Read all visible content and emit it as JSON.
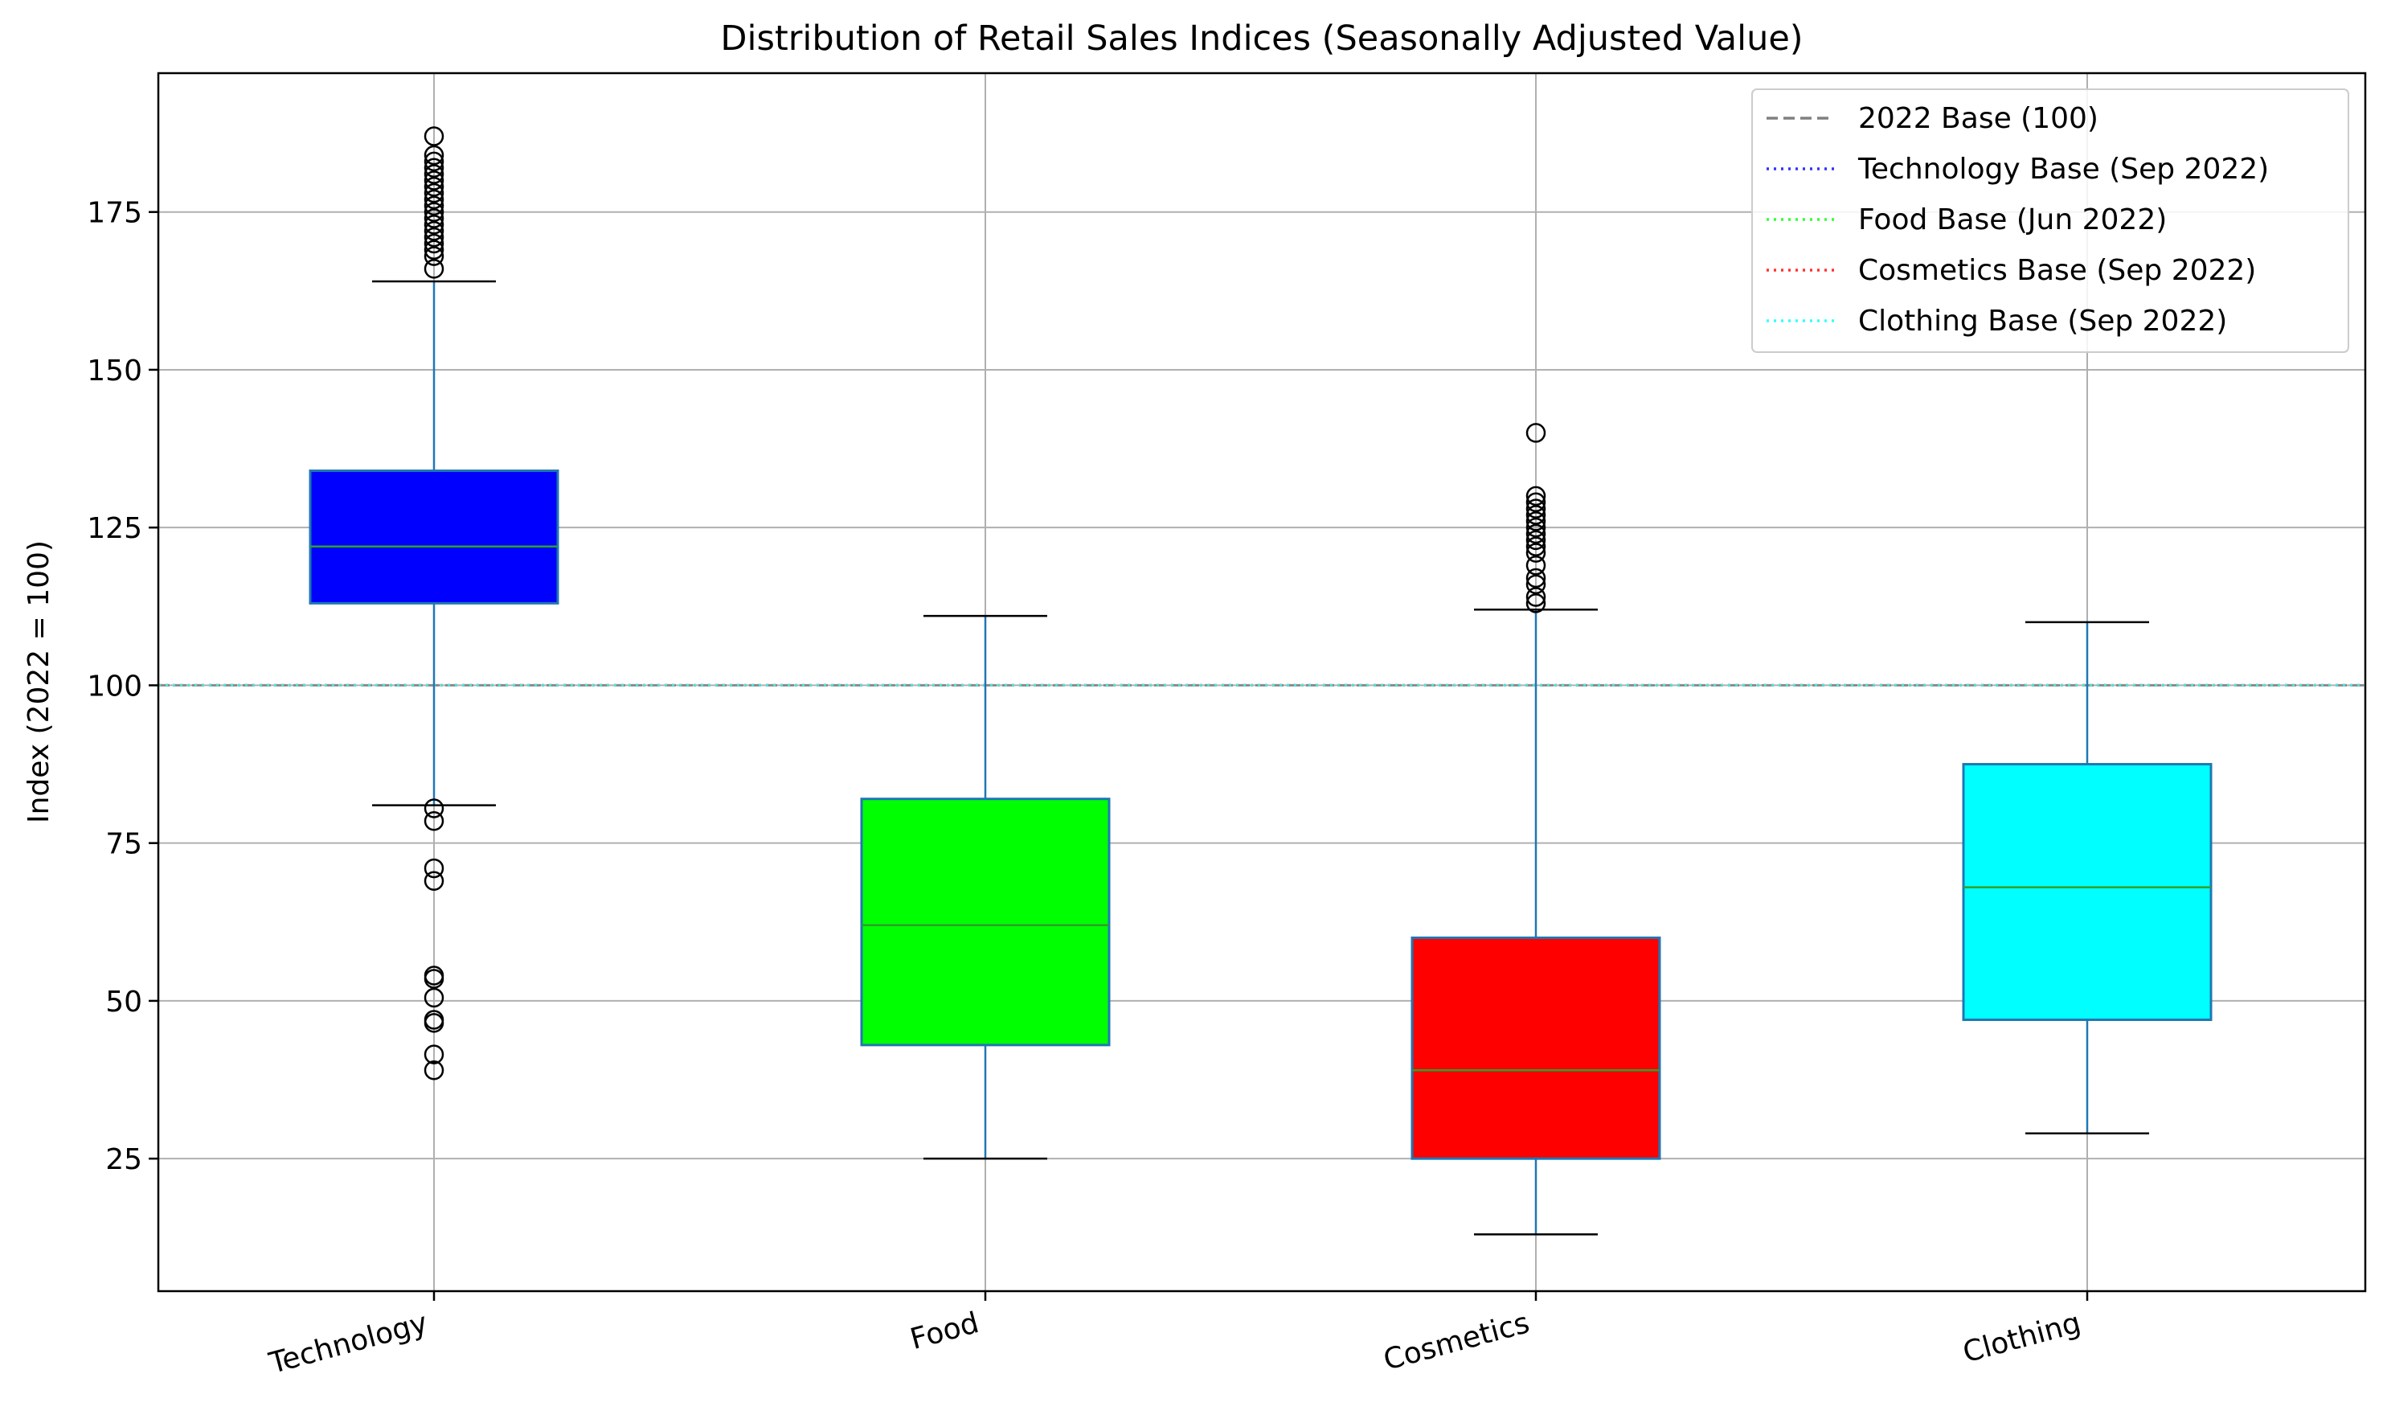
{
  "chart_data": {
    "type": "box",
    "title": "Distribution of Retail Sales Indices (Seasonally Adjusted Value)",
    "xlabel": "",
    "ylabel": "Index (2022 = 100)",
    "ylim": [
      4,
      197
    ],
    "yticks": [
      25,
      50,
      75,
      100,
      125,
      150,
      175
    ],
    "grid": true,
    "legend_position": "top-right",
    "categories": [
      "Technology",
      "Food",
      "Cosmetics",
      "Clothing"
    ],
    "boxes": [
      {
        "category": "Technology",
        "whisker_low": 81,
        "q1": 113,
        "median": 122,
        "q3": 134,
        "whisker_high": 164,
        "fill": "#0000ff",
        "outliers": [
          166,
          168,
          169,
          170,
          171,
          172,
          173,
          174,
          175,
          176,
          177,
          178,
          179,
          180,
          181,
          182,
          183,
          184,
          187,
          80.5,
          78.5,
          71,
          69,
          54,
          53.5,
          50.5,
          47,
          46.5,
          41.5,
          39
        ]
      },
      {
        "category": "Food",
        "whisker_low": 25,
        "q1": 43,
        "median": 62,
        "q3": 82,
        "whisker_high": 111,
        "fill": "#00ff00",
        "outliers": []
      },
      {
        "category": "Cosmetics",
        "whisker_low": 13,
        "q1": 25,
        "median": 39,
        "q3": 60,
        "whisker_high": 112,
        "fill": "#ff0000",
        "outliers": [
          113,
          114,
          116,
          117,
          119,
          121,
          122,
          123,
          124,
          125,
          126,
          127,
          128,
          129,
          130,
          140
        ]
      },
      {
        "category": "Clothing",
        "whisker_low": 29,
        "q1": 47,
        "median": 68,
        "q3": 87.5,
        "whisker_high": 110,
        "fill": "#00ffff",
        "outliers": []
      }
    ],
    "reference_lines": [
      {
        "name": "2022 Base (100)",
        "value": 100,
        "color": "#808080",
        "style": "dashed"
      },
      {
        "name": "Technology Base (Sep 2022)",
        "value": 100,
        "color": "#3333ff",
        "style": "dotted"
      },
      {
        "name": "Food Base (Jun 2022)",
        "value": 100,
        "color": "#33ff33",
        "style": "dotted"
      },
      {
        "name": "Cosmetics Base (Sep 2022)",
        "value": 100,
        "color": "#ff3333",
        "style": "dotted"
      },
      {
        "name": "Clothing Base (Sep 2022)",
        "value": 100,
        "color": "#33ffff",
        "style": "dotted"
      }
    ],
    "colors": {
      "box_edge": "#1f77b4",
      "median": "#2ca02c",
      "whisker": "#1f77b4",
      "cap": "#000000",
      "grid": "#b0b0b0"
    }
  }
}
